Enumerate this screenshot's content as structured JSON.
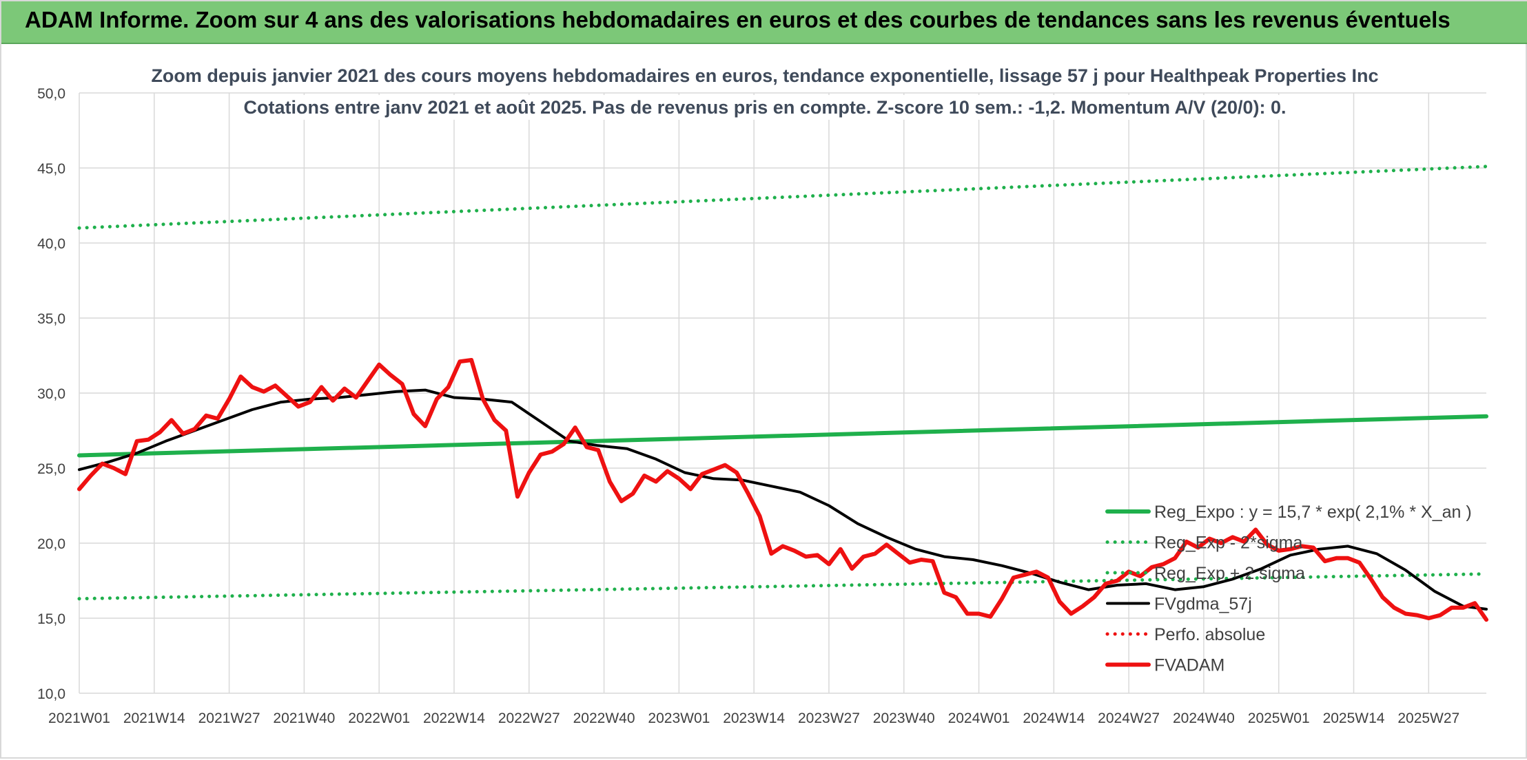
{
  "header": {
    "banner_title": "ADAM Informe. Zoom sur 4 ans des valorisations hebdomadaires en euros et des courbes de tendances sans les revenus éventuels"
  },
  "colors": {
    "banner_bg": "#7cc878",
    "trend_green": "#1fb04c",
    "price_red": "#ee1111",
    "smooth_black": "#000000",
    "grid": "#d9d9d9"
  },
  "chart_data": {
    "type": "line",
    "title": "Zoom depuis janvier 2021 des cours moyens hebdomadaires en euros, tendance exponentielle, lissage 57 j pour Healthpeak Properties Inc",
    "subtitle": "Cotations entre janv 2021 et août 2025. Pas de revenus pris en compte. Z-score 10 sem.: -1,2. Momentum A/V (20/0): 0.",
    "xlabel": "",
    "ylabel": "",
    "ylim": [
      10,
      50
    ],
    "yticks": [
      "10,0",
      "15,0",
      "20,0",
      "25,0",
      "30,0",
      "35,0",
      "40,0",
      "45,0",
      "50,0"
    ],
    "xtick_labels": [
      "2021W01",
      "2021W14",
      "2021W27",
      "2021W40",
      "2022W01",
      "2022W14",
      "2022W27",
      "2022W40",
      "2023W01",
      "2023W14",
      "2023W27",
      "2023W40",
      "2024W01",
      "2024W14",
      "2024W27",
      "2024W40",
      "2025W01",
      "2025W14",
      "2025W27"
    ],
    "x_range_weeks": [
      0,
      244
    ],
    "grid": true,
    "legend_position": "lower-right",
    "series": [
      {
        "name": "Reg_Expo : y = 15,7 * exp( 2,1% *  X_an )",
        "style": "solid-thick",
        "color": "#1fb04c",
        "x": [
          0,
          244
        ],
        "y": [
          25.85,
          28.45
        ]
      },
      {
        "name": "Reg_Exp - 2*sigma",
        "style": "dotted",
        "color": "#1fb04c",
        "x": [
          0,
          244
        ],
        "y": [
          16.3,
          17.95
        ]
      },
      {
        "name": "Reg_Exp + 2 sigma",
        "style": "dotted",
        "color": "#1fb04c",
        "x": [
          0,
          244
        ],
        "y": [
          41.0,
          45.1
        ]
      },
      {
        "name": "FVgdma_57j",
        "style": "solid",
        "color": "#000000",
        "x": [
          0,
          5,
          10,
          15,
          20,
          25,
          30,
          35,
          40,
          45,
          50,
          55,
          60,
          65,
          70,
          75,
          80,
          85,
          90,
          95,
          100,
          105,
          110,
          115,
          120,
          125,
          130,
          135,
          140,
          145,
          150,
          155,
          160,
          165,
          170,
          175,
          180,
          185,
          190,
          195,
          200,
          205,
          210,
          215,
          220,
          225,
          230,
          235,
          240,
          244
        ],
        "y": [
          24.9,
          25.4,
          26.0,
          26.8,
          27.5,
          28.2,
          28.9,
          29.4,
          29.6,
          29.7,
          29.9,
          30.1,
          30.2,
          29.7,
          29.6,
          29.4,
          28.1,
          26.8,
          26.5,
          26.3,
          25.6,
          24.7,
          24.3,
          24.2,
          23.8,
          23.4,
          22.5,
          21.3,
          20.4,
          19.6,
          19.1,
          18.9,
          18.5,
          18.0,
          17.4,
          16.9,
          17.2,
          17.3,
          16.9,
          17.1,
          17.6,
          18.3,
          19.2,
          19.6,
          19.8,
          19.3,
          18.2,
          16.8,
          15.8,
          15.6
        ]
      },
      {
        "name": "Perfo. absolue",
        "style": "dotted",
        "color": "#ee1111",
        "x": [],
        "y": []
      },
      {
        "name": "FVADAM",
        "style": "solid-thick",
        "color": "#ee1111",
        "x": [
          0,
          2,
          4,
          6,
          8,
          10,
          12,
          14,
          16,
          18,
          20,
          22,
          24,
          26,
          28,
          30,
          32,
          34,
          36,
          38,
          40,
          42,
          44,
          46,
          48,
          50,
          52,
          54,
          56,
          58,
          60,
          62,
          64,
          66,
          68,
          70,
          72,
          74,
          76,
          78,
          80,
          82,
          84,
          86,
          88,
          90,
          92,
          94,
          96,
          98,
          100,
          102,
          104,
          106,
          108,
          110,
          112,
          114,
          116,
          118,
          120,
          122,
          124,
          126,
          128,
          130,
          132,
          134,
          136,
          138,
          140,
          142,
          144,
          146,
          148,
          150,
          152,
          154,
          156,
          158,
          160,
          162,
          164,
          166,
          168,
          170,
          172,
          174,
          176,
          178,
          180,
          182,
          184,
          186,
          188,
          190,
          192,
          194,
          196,
          198,
          200,
          202,
          204,
          206,
          208,
          210,
          212,
          214,
          216,
          218,
          220,
          222,
          224,
          226,
          228,
          230,
          232,
          234,
          236,
          238,
          240,
          242,
          244
        ],
        "y": [
          23.6,
          24.5,
          25.3,
          25.0,
          24.6,
          26.8,
          26.9,
          27.4,
          28.2,
          27.3,
          27.6,
          28.5,
          28.3,
          29.6,
          31.1,
          30.4,
          30.1,
          30.5,
          29.8,
          29.1,
          29.4,
          30.4,
          29.5,
          30.3,
          29.7,
          30.8,
          31.9,
          31.2,
          30.6,
          28.6,
          27.8,
          29.6,
          30.4,
          32.1,
          32.2,
          29.6,
          28.2,
          27.5,
          23.1,
          24.7,
          25.9,
          26.1,
          26.6,
          27.7,
          26.4,
          26.2,
          24.1,
          22.8,
          23.3,
          24.5,
          24.1,
          24.8,
          24.3,
          23.6,
          24.6,
          24.9,
          25.2,
          24.7,
          23.3,
          21.8,
          19.3,
          19.8,
          19.5,
          19.1,
          19.2,
          18.6,
          19.6,
          18.3,
          19.1,
          19.3,
          19.9,
          19.3,
          18.7,
          18.9,
          18.8,
          16.7,
          16.4,
          15.3,
          15.3,
          15.1,
          16.3,
          17.7,
          17.9,
          18.1,
          17.7,
          16.1,
          15.3,
          15.8,
          16.4,
          17.3,
          17.5,
          18.1,
          17.8,
          18.4,
          18.6,
          19.0,
          20.1,
          19.7,
          20.3,
          20.0,
          20.4,
          20.1,
          20.9,
          19.9,
          19.5,
          19.6,
          19.8,
          19.7,
          18.8,
          19.0,
          19.0,
          18.7,
          17.6,
          16.4,
          15.7,
          15.3,
          15.2,
          15.0,
          15.2,
          15.7,
          15.7,
          16.0,
          14.9
        ]
      }
    ]
  }
}
